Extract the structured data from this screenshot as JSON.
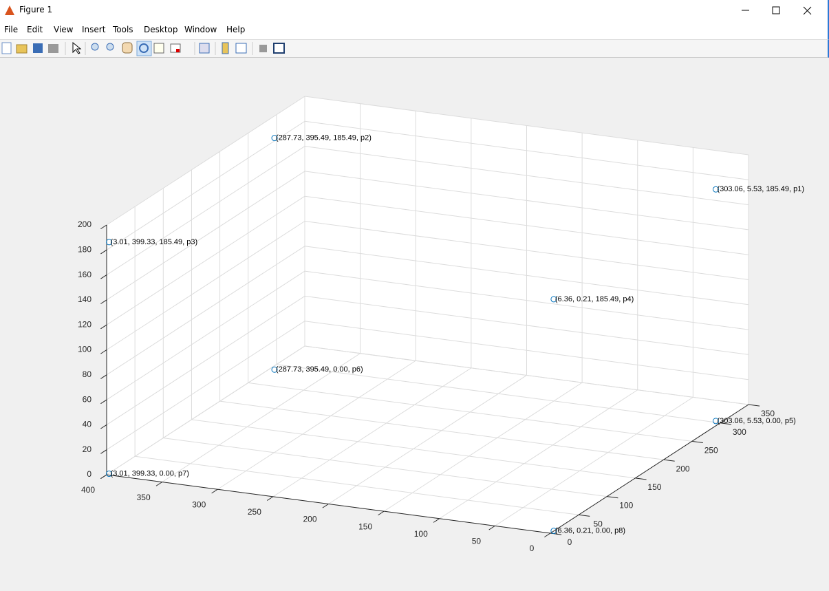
{
  "window": {
    "title": "Figure 1",
    "menu": [
      "File",
      "Edit",
      "View",
      "Insert",
      "Tools",
      "Desktop",
      "Window",
      "Help"
    ]
  },
  "chart_data": {
    "type": "scatter3d",
    "x": [
      303.06,
      287.73,
      3.01,
      6.36,
      303.06,
      287.73,
      3.01,
      6.36
    ],
    "y": [
      5.53,
      395.49,
      399.33,
      0.21,
      5.53,
      395.49,
      399.33,
      0.21
    ],
    "z": [
      185.49,
      185.49,
      185.49,
      185.49,
      0,
      0,
      0,
      0
    ],
    "labels": [
      "(303.06, 5.53, 185.49, p1)",
      "(287.73, 395.49, 185.49, p2)",
      "(3.01, 399.33, 185.49, p3)",
      "(6.36, 0.21, 185.49, p4)",
      "(303.06, 5.53, 0.00, p5)",
      "(287.73, 395.49, 0.00, p6)",
      "(3.01, 399.33, 0.00, p7)",
      "(6.36, 0.21, 0.00, p8)"
    ],
    "color": "#0072bd",
    "xlim": [
      0,
      350
    ],
    "ylim": [
      0,
      400
    ],
    "zlim": [
      0,
      200
    ],
    "xticks": [
      0,
      50,
      100,
      150,
      200,
      250,
      300,
      350
    ],
    "yticks": [
      0,
      50,
      100,
      150,
      200,
      250,
      300,
      350,
      400
    ],
    "zticks": [
      0,
      20,
      40,
      60,
      80,
      100,
      120,
      140,
      160,
      180,
      200
    ],
    "grid": true
  }
}
